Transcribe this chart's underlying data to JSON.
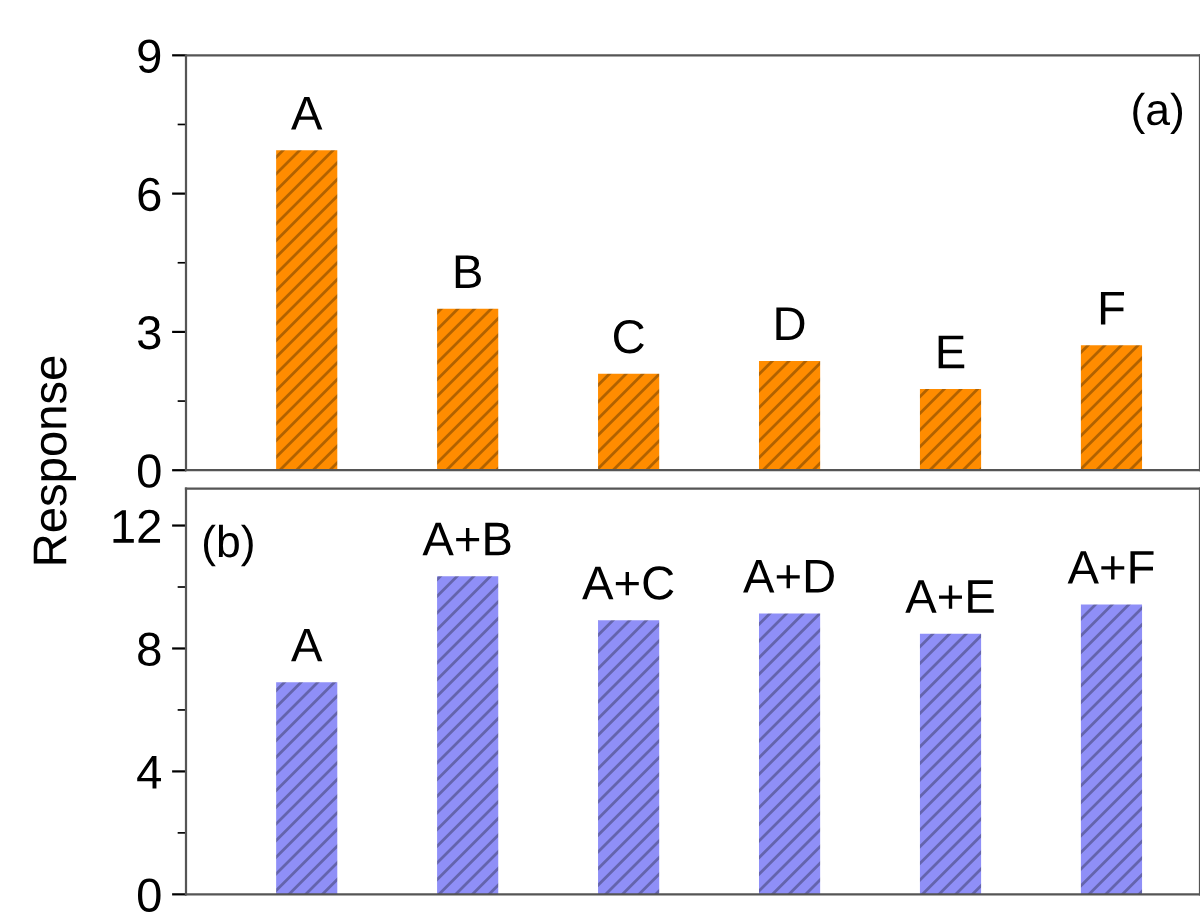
{
  "chart_data": [
    {
      "type": "bar",
      "categories": [
        "A",
        "B",
        "C",
        "D",
        "E",
        "F"
      ],
      "values": [
        6.94,
        3.5,
        2.09,
        2.37,
        1.76,
        2.71
      ],
      "color": "#ff8c00",
      "ylim": [
        0,
        9
      ],
      "yticks": [
        0,
        3,
        6,
        9
      ],
      "annotations": [
        "(a)"
      ],
      "grid": false
    },
    {
      "type": "bar",
      "categories": [
        "A",
        "A+B",
        "A+C",
        "A+D",
        "A+E",
        "A+F"
      ],
      "values": [
        6.9,
        10.35,
        8.92,
        9.14,
        8.48,
        9.43
      ],
      "color": "#8f8ff7",
      "ylim": [
        0,
        13.2
      ],
      "yticks": [
        0,
        4,
        8,
        12
      ],
      "annotations": [
        "(b)"
      ],
      "ylabel": "Response",
      "grid": false
    }
  ]
}
